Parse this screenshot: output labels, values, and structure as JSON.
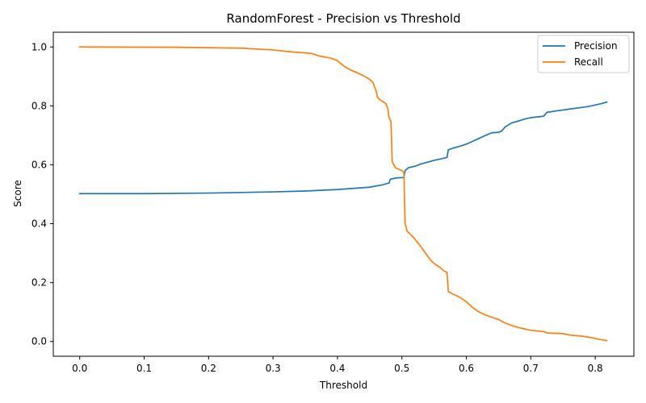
{
  "chart_data": {
    "type": "line",
    "title": "RandomForest - Precision vs Threshold",
    "xlabel": "Threshold",
    "ylabel": "Score",
    "xlim": [
      -0.041,
      0.86
    ],
    "ylim": [
      -0.05,
      1.05
    ],
    "xticks": [
      0.0,
      0.1,
      0.2,
      0.3,
      0.4,
      0.5,
      0.6,
      0.7,
      0.8
    ],
    "xtick_labels": [
      "0.0",
      "0.1",
      "0.2",
      "0.3",
      "0.4",
      "0.5",
      "0.6",
      "0.7",
      "0.8"
    ],
    "yticks": [
      0.0,
      0.2,
      0.4,
      0.6,
      0.8,
      1.0
    ],
    "ytick_labels": [
      "0.0",
      "0.2",
      "0.4",
      "0.6",
      "0.8",
      "1.0"
    ],
    "grid": false,
    "legend_position": "top-right",
    "series": [
      {
        "name": "Precision",
        "color": "#1f77b4",
        "x": [
          0.0,
          0.1,
          0.2,
          0.3,
          0.35,
          0.4,
          0.45,
          0.46,
          0.47,
          0.48,
          0.482,
          0.49,
          0.503,
          0.505,
          0.51,
          0.52,
          0.53,
          0.54,
          0.55,
          0.56,
          0.57,
          0.572,
          0.58,
          0.59,
          0.6,
          0.61,
          0.62,
          0.63,
          0.64,
          0.65,
          0.655,
          0.66,
          0.67,
          0.68,
          0.69,
          0.7,
          0.72,
          0.725,
          0.74,
          0.76,
          0.78,
          0.79,
          0.8,
          0.81,
          0.818
        ],
        "y": [
          0.502,
          0.502,
          0.504,
          0.508,
          0.511,
          0.516,
          0.524,
          0.528,
          0.532,
          0.538,
          0.551,
          0.555,
          0.557,
          0.58,
          0.59,
          0.595,
          0.603,
          0.609,
          0.615,
          0.62,
          0.625,
          0.651,
          0.657,
          0.663,
          0.67,
          0.68,
          0.69,
          0.7,
          0.709,
          0.71,
          0.715,
          0.728,
          0.742,
          0.748,
          0.755,
          0.76,
          0.765,
          0.778,
          0.783,
          0.789,
          0.795,
          0.798,
          0.803,
          0.808,
          0.813
        ]
      },
      {
        "name": "Recall",
        "color": "#ff7f0e",
        "x": [
          0.0,
          0.15,
          0.25,
          0.3,
          0.32,
          0.36,
          0.37,
          0.39,
          0.4,
          0.41,
          0.42,
          0.43,
          0.44,
          0.45,
          0.455,
          0.46,
          0.462,
          0.465,
          0.47,
          0.475,
          0.478,
          0.48,
          0.483,
          0.485,
          0.49,
          0.5,
          0.503,
          0.505,
          0.508,
          0.515,
          0.52,
          0.525,
          0.53,
          0.535,
          0.54,
          0.545,
          0.55,
          0.56,
          0.565,
          0.57,
          0.572,
          0.58,
          0.59,
          0.6,
          0.61,
          0.62,
          0.63,
          0.64,
          0.65,
          0.66,
          0.67,
          0.68,
          0.69,
          0.7,
          0.72,
          0.725,
          0.75,
          0.76,
          0.78,
          0.79,
          0.8,
          0.81,
          0.818
        ],
        "y": [
          1.0,
          0.999,
          0.996,
          0.99,
          0.985,
          0.978,
          0.97,
          0.962,
          0.953,
          0.935,
          0.922,
          0.913,
          0.903,
          0.89,
          0.88,
          0.85,
          0.83,
          0.822,
          0.815,
          0.808,
          0.792,
          0.76,
          0.748,
          0.61,
          0.59,
          0.58,
          0.575,
          0.4,
          0.375,
          0.36,
          0.348,
          0.335,
          0.32,
          0.305,
          0.29,
          0.275,
          0.265,
          0.25,
          0.24,
          0.235,
          0.17,
          0.16,
          0.15,
          0.135,
          0.115,
          0.1,
          0.09,
          0.082,
          0.075,
          0.063,
          0.055,
          0.048,
          0.043,
          0.038,
          0.034,
          0.029,
          0.027,
          0.022,
          0.018,
          0.015,
          0.01,
          0.006,
          0.003
        ]
      }
    ]
  }
}
